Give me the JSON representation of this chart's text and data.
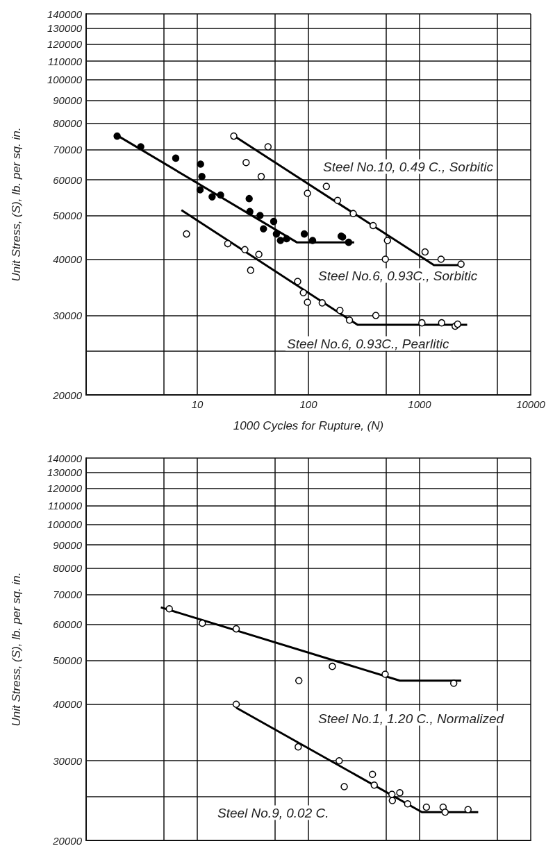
{
  "chart_data": [
    {
      "type": "scatter",
      "xlabel": "1000 Cycles for Rupture, (N)",
      "ylabel": "Unit Stress, (S), lb. per sq. in.",
      "log": "xy",
      "grid": true,
      "xlim": [
        1,
        10000
      ],
      "xticks": [
        {
          "value": 1,
          "label": null
        },
        {
          "value": 5,
          "label": null
        },
        10,
        {
          "value": 50,
          "label": null
        },
        100,
        {
          "value": 500,
          "label": null
        },
        1000,
        {
          "value": 5000,
          "label": null
        },
        10000
      ],
      "ylim": [
        20000,
        140000
      ],
      "yticks": [
        20000,
        {
          "value": 25000,
          "label": null
        },
        30000,
        40000,
        50000,
        60000,
        70000,
        80000,
        90000,
        100000,
        110000,
        120000,
        130000,
        140000
      ],
      "series": [
        {
          "marker": "circle",
          "color": "#000000",
          "x": [
            1.9,
            3.1,
            6.4,
            10.7,
            11,
            10.6,
            13.6,
            16.2,
            29.3,
            29.7,
            36.7,
            39.4,
            48.7,
            51.5,
            56,
            63.6,
            91.8,
            109,
            197,
            203,
            230
          ],
          "values": [
            75000,
            71000,
            67000,
            65000,
            61000,
            57000,
            55000,
            55500,
            54500,
            51000,
            50000,
            46700,
            48500,
            45500,
            44000,
            44400,
            45500,
            44000,
            45000,
            44800,
            43600
          ]
        },
        {
          "type": "line",
          "marker": "none",
          "color": "#000000",
          "x": [
            1.95,
            78.6,
            258
          ],
          "values": [
            75000,
            43600,
            43600
          ]
        },
        {
          "marker": "circle",
          "color": "#ffffff",
          "x": [
            21.3,
            43.3,
            27.5,
            37.6,
            98,
            145,
            183,
            253,
            382,
            514,
            492,
            1120,
            1560,
            2360
          ],
          "values": [
            75000,
            71000,
            65500,
            61000,
            56000,
            58000,
            54000,
            50500,
            47500,
            44000,
            40000,
            41500,
            40000,
            39000
          ]
        },
        {
          "type": "line",
          "marker": "none",
          "color": "#000000",
          "x": [
            21.5,
            1347,
            2408
          ],
          "values": [
            75000,
            38800,
            38800
          ]
        },
        {
          "marker": "circle",
          "color": "#ffffff",
          "x": [
            8,
            18.8,
            26.8,
            35.8,
            30.2,
            80,
            90,
            98,
            133,
            192,
            234,
            404,
            1050,
            1580,
            2090,
            2200
          ],
          "values": [
            45500,
            43300,
            42000,
            41000,
            37800,
            35700,
            33700,
            32100,
            32000,
            30800,
            29300,
            30000,
            28900,
            28900,
            28400,
            28700
          ]
        },
        {
          "type": "line",
          "marker": "none",
          "color": "#000000",
          "x": [
            7.2,
            277,
            2680
          ],
          "values": [
            51400,
            28600,
            28600
          ]
        }
      ],
      "annotations": [
        "Steel No.10, 0.49 C., Sorbitic",
        "Steel No.6, 0.93C., Sorbitic",
        "Steel No.6, 0.93C., Pearlitic"
      ]
    },
    {
      "type": "scatter",
      "ylabel": "Unit Stress, (S), lb. per sq. in.",
      "log": "xy",
      "grid": true,
      "tick_labels": "y",
      "xlim": [
        1,
        10000
      ],
      "xticks": [
        {
          "value": 1,
          "label": null
        },
        {
          "value": 5,
          "label": null
        },
        10,
        {
          "value": 50,
          "label": null
        },
        100,
        {
          "value": 500,
          "label": null
        },
        1000,
        {
          "value": 5000,
          "label": null
        },
        10000
      ],
      "ylim": [
        20000,
        140000
      ],
      "yticks": [
        20000,
        {
          "value": 25000,
          "label": null
        },
        30000,
        40000,
        50000,
        60000,
        70000,
        80000,
        90000,
        100000,
        110000,
        120000,
        130000,
        140000
      ],
      "series": [
        {
          "marker": "circle",
          "color": "#ffffff",
          "x": [
            5.6,
            11.1,
            22.4,
            164,
            82,
            490,
            2030
          ],
          "values": [
            65000,
            60400,
            58700,
            48500,
            45100,
            46600,
            44500
          ]
        },
        {
          "type": "line",
          "marker": "none",
          "color": "#000000",
          "x": [
            4.7,
            664,
            2370
          ],
          "values": [
            65500,
            45100,
            45100
          ]
        },
        {
          "marker": "circle",
          "color": "#ffffff",
          "x": [
            22.4,
            80.9,
            189,
            210,
            377,
            391,
            564,
            664,
            569,
            781,
            1152,
            1628,
            1698,
            2728
          ],
          "values": [
            40000,
            32200,
            30000,
            26300,
            28000,
            26500,
            25300,
            25500,
            24500,
            24100,
            23700,
            23700,
            23100,
            23400
          ]
        },
        {
          "type": "line",
          "marker": "none",
          "color": "#000000",
          "x": [
            22.4,
            1050,
            3370
          ],
          "values": [
            39300,
            23100,
            23100
          ]
        }
      ],
      "annotations": [
        "Steel No.1, 1.20 C., Normalized",
        "Steel No.9, 0.02 C."
      ]
    }
  ]
}
